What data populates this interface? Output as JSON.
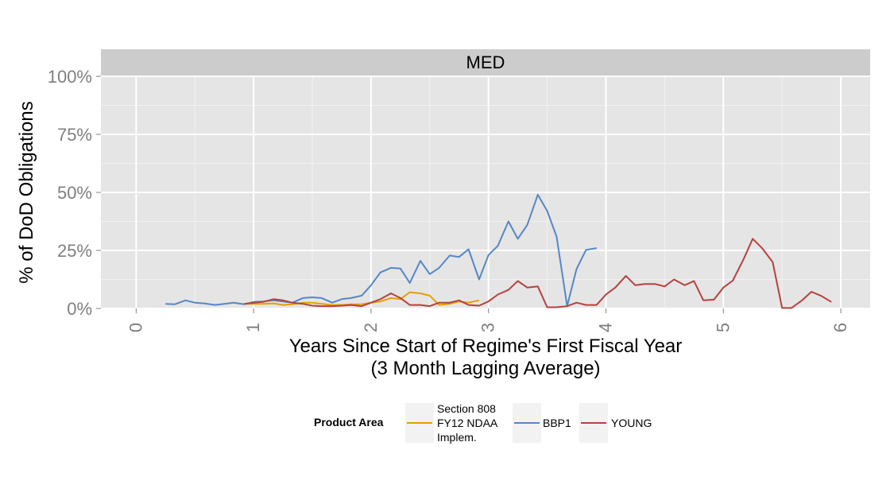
{
  "chart_data": {
    "type": "line",
    "facet_label": "MED",
    "xlabel": "Years Since Start of Regime's First Fiscal Year",
    "xlabel_sub": "(3 Month Lagging Average)",
    "ylabel": "% of DoD Obligations",
    "xlim": [
      -0.3,
      6.25
    ],
    "ylim": [
      0,
      1.0
    ],
    "x_ticks": [
      0,
      1,
      2,
      3,
      4,
      5,
      6
    ],
    "x_tick_labels": [
      "0",
      "1",
      "2",
      "3",
      "4",
      "5",
      "6"
    ],
    "y_ticks": [
      0,
      0.25,
      0.5,
      0.75,
      1.0
    ],
    "y_tick_labels": [
      "0%",
      "25%",
      "50%",
      "75%",
      "100%"
    ],
    "grid": true,
    "legend": {
      "title": "Product Area",
      "position": "bottom",
      "entries": [
        {
          "label_lines": [
            "Section 808",
            "FY12 NDAA",
            "Implem."
          ],
          "color": "#e69f00"
        },
        {
          "label_lines": [
            "BBP1"
          ],
          "color": "#5587c6"
        },
        {
          "label_lines": [
            "YOUNG"
          ],
          "color": "#b5423f"
        }
      ]
    },
    "series": [
      {
        "name": "Section 808 FY12 NDAA Implem.",
        "color": "#e69f00",
        "x": [
          0.92,
          1.0,
          1.08,
          1.17,
          1.25,
          1.33,
          1.42,
          1.5,
          1.58,
          1.67,
          1.75,
          1.83,
          1.92,
          2.0,
          2.08,
          2.17,
          2.25,
          2.33,
          2.42,
          2.5,
          2.58,
          2.67,
          2.75,
          2.83,
          2.92
        ],
        "y": [
          0.02,
          0.02,
          0.02,
          0.022,
          0.015,
          0.018,
          0.025,
          0.025,
          0.02,
          0.015,
          0.015,
          0.018,
          0.018,
          0.025,
          0.03,
          0.045,
          0.04,
          0.07,
          0.065,
          0.055,
          0.015,
          0.02,
          0.03,
          0.025,
          0.035
        ]
      },
      {
        "name": "BBP1",
        "color": "#5587c6",
        "x": [
          0.25,
          0.33,
          0.42,
          0.5,
          0.58,
          0.67,
          0.75,
          0.83,
          0.92,
          1.0,
          1.08,
          1.17,
          1.25,
          1.33,
          1.42,
          1.5,
          1.58,
          1.67,
          1.75,
          1.83,
          1.92,
          2.0,
          2.08,
          2.17,
          2.25,
          2.33,
          2.42,
          2.5,
          2.58,
          2.67,
          2.75,
          2.83,
          2.92,
          3.0,
          3.08,
          3.17,
          3.25,
          3.33,
          3.42,
          3.5,
          3.58,
          3.67,
          3.75,
          3.83,
          3.92
        ],
        "y": [
          0.02,
          0.018,
          0.035,
          0.025,
          0.022,
          0.015,
          0.02,
          0.025,
          0.018,
          0.028,
          0.03,
          0.035,
          0.03,
          0.025,
          0.045,
          0.048,
          0.045,
          0.025,
          0.04,
          0.045,
          0.055,
          0.1,
          0.155,
          0.175,
          0.172,
          0.11,
          0.205,
          0.148,
          0.175,
          0.228,
          0.222,
          0.255,
          0.125,
          0.23,
          0.27,
          0.375,
          0.3,
          0.36,
          0.49,
          0.42,
          0.31,
          0.01,
          0.17,
          0.252,
          0.26
        ]
      },
      {
        "name": "YOUNG",
        "color": "#b5423f",
        "x": [
          0.92,
          1.0,
          1.08,
          1.17,
          1.25,
          1.33,
          1.42,
          1.5,
          1.58,
          1.67,
          1.75,
          1.83,
          1.92,
          2.0,
          2.08,
          2.17,
          2.25,
          2.33,
          2.42,
          2.5,
          2.58,
          2.67,
          2.75,
          2.83,
          2.92,
          3.0,
          3.08,
          3.17,
          3.25,
          3.33,
          3.42,
          3.5,
          3.58,
          3.67,
          3.75,
          3.83,
          3.92,
          4.0,
          4.08,
          4.17,
          4.25,
          4.33,
          4.42,
          4.5,
          4.58,
          4.67,
          4.75,
          4.83,
          4.92,
          5.0,
          5.08,
          5.17,
          5.25,
          5.33,
          5.42,
          5.5,
          5.58,
          5.67,
          5.75,
          5.83,
          5.92
        ],
        "y": [
          0.02,
          0.025,
          0.028,
          0.04,
          0.035,
          0.025,
          0.02,
          0.012,
          0.01,
          0.01,
          0.012,
          0.015,
          0.01,
          0.025,
          0.04,
          0.065,
          0.045,
          0.015,
          0.015,
          0.01,
          0.025,
          0.025,
          0.035,
          0.015,
          0.012,
          0.03,
          0.06,
          0.08,
          0.118,
          0.09,
          0.095,
          0.005,
          0.005,
          0.01,
          0.025,
          0.015,
          0.015,
          0.06,
          0.09,
          0.14,
          0.1,
          0.105,
          0.105,
          0.095,
          0.125,
          0.1,
          0.118,
          0.035,
          0.038,
          0.09,
          0.12,
          0.21,
          0.3,
          0.26,
          0.2,
          0.002,
          0.002,
          0.035,
          0.072,
          0.055,
          0.028
        ]
      }
    ]
  }
}
